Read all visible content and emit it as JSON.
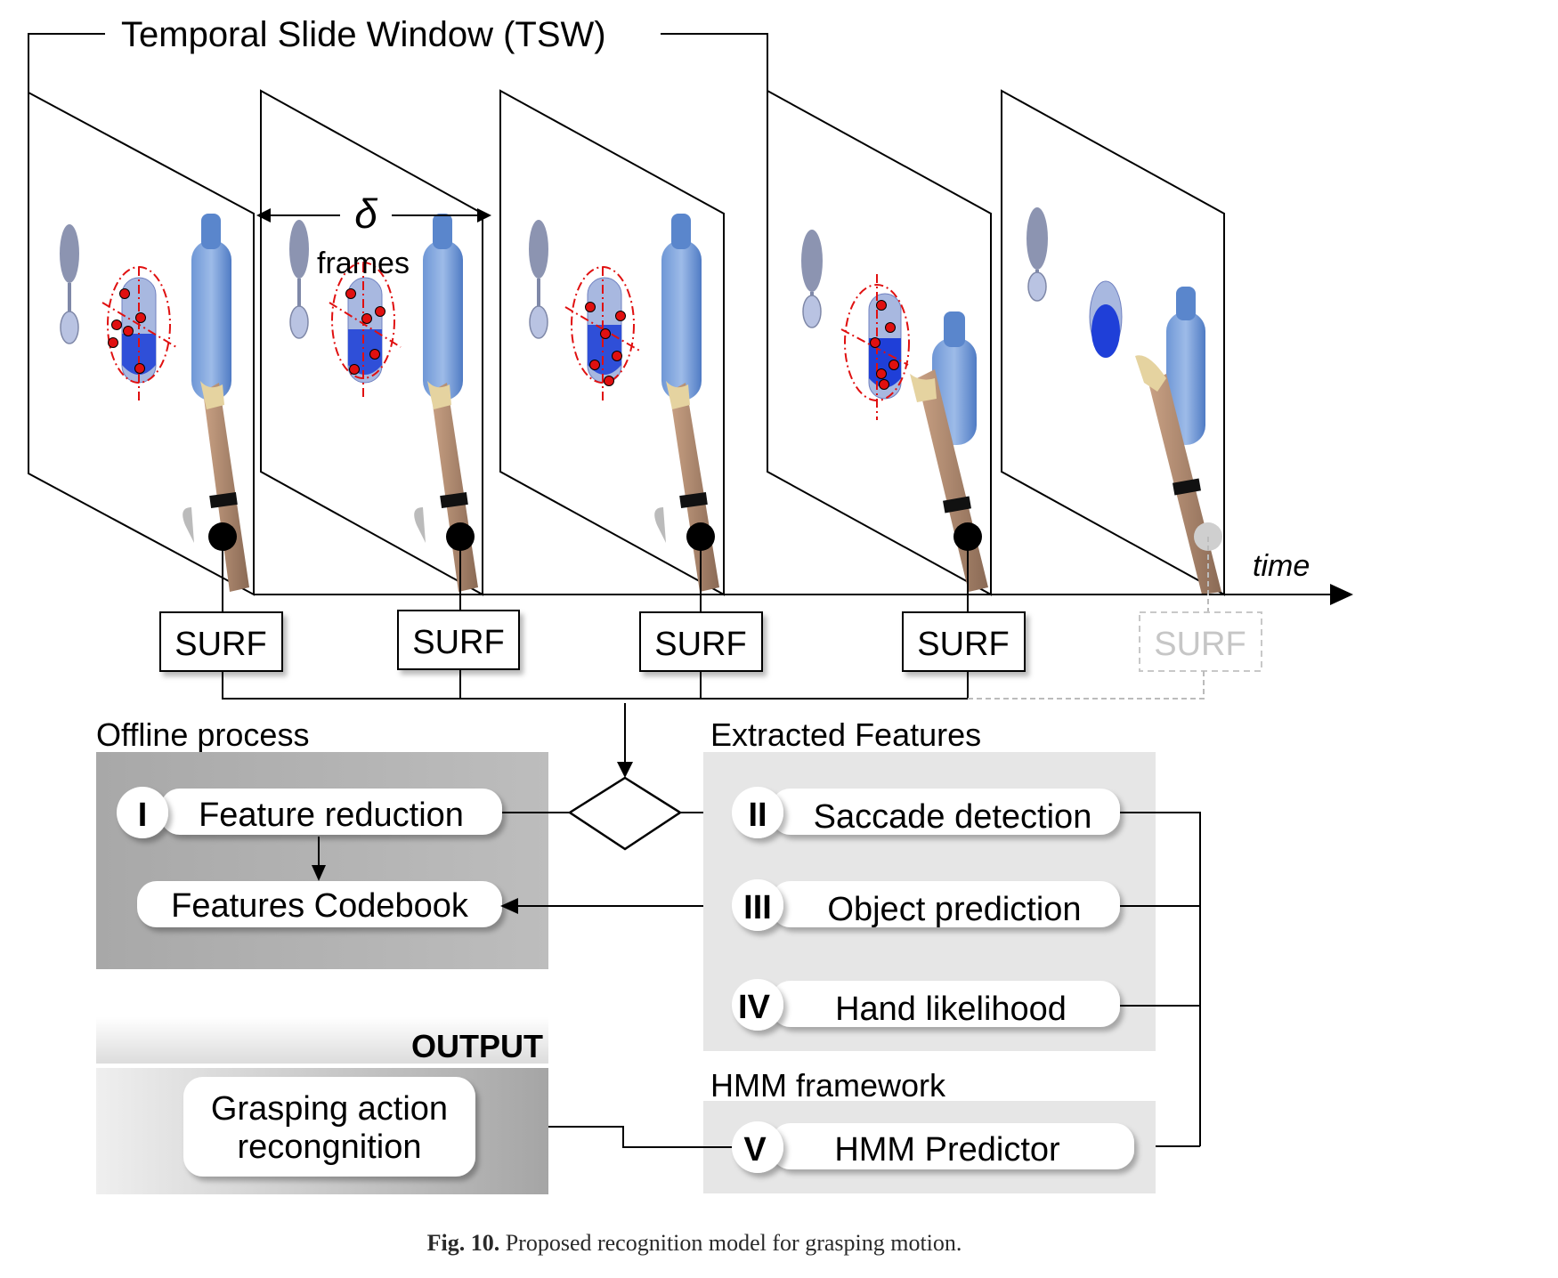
{
  "header": {
    "title": "Temporal Slide Window (TSW)"
  },
  "window_annotation": {
    "symbol": "δ",
    "unit": "frames"
  },
  "time_label": "time",
  "surf_boxes": [
    "SURF",
    "SURF",
    "SURF",
    "SURF",
    "SURF"
  ],
  "offline": {
    "title": "Offline process",
    "step_badge": "I",
    "step_label": "Feature reduction",
    "codebook_label": "Features Codebook"
  },
  "extracted": {
    "title": "Extracted Features",
    "items": [
      {
        "badge": "II",
        "label": "Saccade detection"
      },
      {
        "badge": "III",
        "label": "Object prediction"
      },
      {
        "badge": "IV",
        "label": "Hand likelihood"
      }
    ]
  },
  "hmm": {
    "title": "HMM framework",
    "badge": "V",
    "label": "HMM Predictor"
  },
  "output": {
    "title": "OUTPUT",
    "line1": "Grasping action",
    "line2": "recongnition"
  },
  "caption": {
    "label": "Fig. 10.",
    "text": " Proposed recognition model for grasping motion."
  },
  "colors": {
    "feature_marker": "#e01010",
    "glass_blue": "#5a8ad0",
    "liquid_blue": "#1f3fd8"
  }
}
